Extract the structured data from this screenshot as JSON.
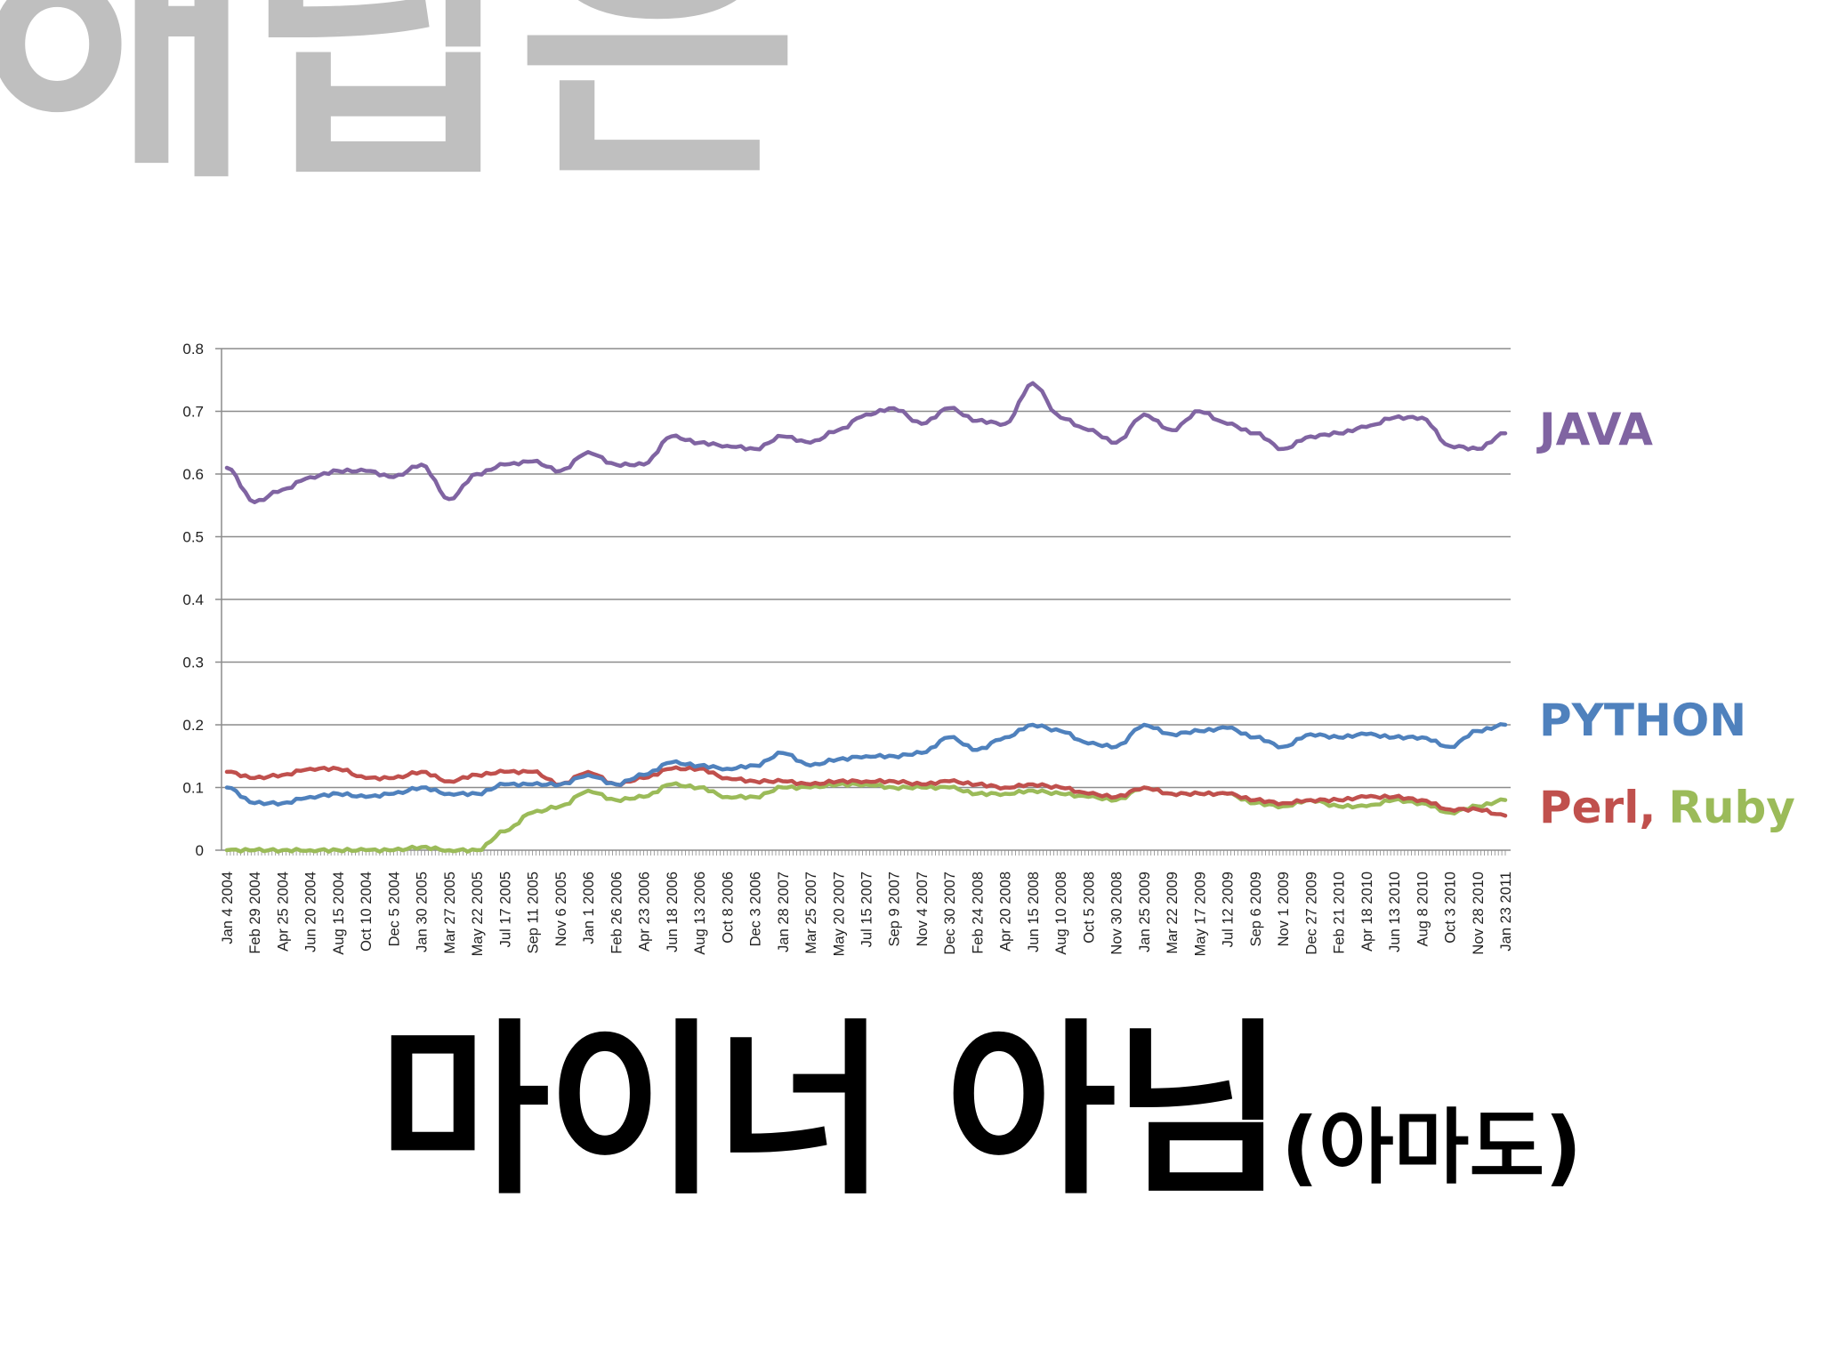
{
  "heading": "해답은",
  "caption": {
    "main": "마이너 아님",
    "note": "(아마도)"
  },
  "series_labels": {
    "java": "JAVA",
    "python": "PYTHON",
    "perl": "Perl",
    "separator": ",",
    "ruby": "Ruby"
  },
  "chart_data": {
    "type": "line",
    "ylim": [
      0,
      0.8
    ],
    "yticks": [
      0,
      0.1,
      0.2,
      0.3,
      0.4,
      0.5,
      0.6,
      0.7,
      0.8
    ],
    "ytick_labels": [
      "0",
      "0.1",
      "0.2",
      "0.3",
      "0.4",
      "0.5",
      "0.6",
      "0.7",
      "0.8"
    ],
    "grid": true,
    "legend": "right, inline at line ends",
    "x": [
      "Jan 4 2004",
      "Feb 29 2004",
      "Apr 25 2004",
      "Jun 20 2004",
      "Aug 15 2004",
      "Oct 10 2004",
      "Dec 5 2004",
      "Jan 30 2005",
      "Mar 27 2005",
      "May 22 2005",
      "Jul 17 2005",
      "Sep 11 2005",
      "Nov 6 2005",
      "Jan 1 2006",
      "Feb 26 2006",
      "Apr 23 2006",
      "Jun 18 2006",
      "Aug 13 2006",
      "Oct 8 2006",
      "Dec 3 2006",
      "Jan 28 2007",
      "Mar 25 2007",
      "May 20 2007",
      "Jul 15 2007",
      "Sep 9 2007",
      "Nov 4 2007",
      "Dec 30 2007",
      "Feb 24 2008",
      "Apr 20 2008",
      "Jun 15 2008",
      "Aug 10 2008",
      "Oct 5 2008",
      "Nov 30 2008",
      "Jan 25 2009",
      "Mar 22 2009",
      "May 17 2009",
      "Jul 12 2009",
      "Sep 6 2009",
      "Nov 1 2009",
      "Dec 27 2009",
      "Feb 21 2010",
      "Apr 18 2010",
      "Jun 13 2010",
      "Aug 8 2010",
      "Oct 3 2010",
      "Nov 28 2010",
      "Jan 23 2011"
    ],
    "colors": {
      "java": "#8064a2",
      "python": "#4f81bd",
      "perl": "#c0504d",
      "ruby": "#9bbb59",
      "grid": "#8c8c8c",
      "axis": "#8c8c8c"
    },
    "series": [
      {
        "name": "JAVA",
        "key": "java",
        "values": [
          0.61,
          0.555,
          0.575,
          0.595,
          0.605,
          0.605,
          0.595,
          0.615,
          0.56,
          0.6,
          0.615,
          0.62,
          0.605,
          0.635,
          0.615,
          0.615,
          0.66,
          0.65,
          0.645,
          0.64,
          0.66,
          0.65,
          0.67,
          0.695,
          0.705,
          0.68,
          0.705,
          0.685,
          0.68,
          0.745,
          0.69,
          0.67,
          0.65,
          0.695,
          0.67,
          0.7,
          0.68,
          0.665,
          0.64,
          0.66,
          0.665,
          0.675,
          0.69,
          0.69,
          0.645,
          0.64,
          0.665
        ]
      },
      {
        "name": "PYTHON",
        "key": "python",
        "values": [
          0.1,
          0.075,
          0.075,
          0.085,
          0.09,
          0.085,
          0.09,
          0.1,
          0.09,
          0.09,
          0.105,
          0.105,
          0.105,
          0.12,
          0.105,
          0.12,
          0.14,
          0.135,
          0.13,
          0.135,
          0.155,
          0.135,
          0.145,
          0.15,
          0.15,
          0.155,
          0.18,
          0.16,
          0.18,
          0.2,
          0.19,
          0.17,
          0.165,
          0.2,
          0.185,
          0.19,
          0.195,
          0.18,
          0.165,
          0.185,
          0.18,
          0.185,
          0.18,
          0.18,
          0.165,
          0.19,
          0.2
        ]
      },
      {
        "name": "Perl",
        "key": "perl",
        "values": [
          0.125,
          0.115,
          0.12,
          0.13,
          0.13,
          0.115,
          0.115,
          0.125,
          0.11,
          0.12,
          0.125,
          0.125,
          0.105,
          0.125,
          0.105,
          0.115,
          0.13,
          0.13,
          0.115,
          0.11,
          0.11,
          0.105,
          0.11,
          0.11,
          0.11,
          0.105,
          0.11,
          0.105,
          0.1,
          0.105,
          0.1,
          0.09,
          0.085,
          0.1,
          0.09,
          0.09,
          0.09,
          0.08,
          0.075,
          0.08,
          0.08,
          0.085,
          0.085,
          0.08,
          0.065,
          0.065,
          0.055
        ]
      },
      {
        "name": "Ruby",
        "key": "ruby",
        "values": [
          0,
          0,
          0,
          0,
          0,
          0,
          0,
          0.005,
          0,
          0,
          0.03,
          0.06,
          0.07,
          0.095,
          0.08,
          0.085,
          0.105,
          0.1,
          0.085,
          0.085,
          0.1,
          0.1,
          0.105,
          0.105,
          0.1,
          0.1,
          0.1,
          0.09,
          0.09,
          0.095,
          0.09,
          0.085,
          0.08,
          0.1,
          0.09,
          0.09,
          0.09,
          0.075,
          0.07,
          0.08,
          0.07,
          0.07,
          0.08,
          0.075,
          0.06,
          0.07,
          0.08
        ]
      }
    ]
  }
}
